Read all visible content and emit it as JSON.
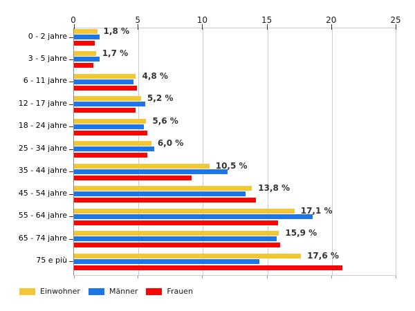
{
  "chart_data": {
    "type": "bar",
    "orientation": "horizontal",
    "title": "",
    "xlabel": "",
    "ylabel": "",
    "xlim": [
      0,
      25
    ],
    "x_ticks": [
      0,
      5,
      10,
      15,
      20,
      25
    ],
    "grid": "vertical",
    "legend_position": "bottom-left",
    "categories": [
      "0 - 2 jahre",
      "3 - 5 jahre",
      "6 - 11 jahre",
      "12 - 17 jahre",
      "18 - 24 jahre",
      "25 - 34 jahre",
      "35 - 44 jahre",
      "45 - 54 jahre",
      "55 - 64 jahre",
      "65 - 74 jahre",
      "75 e più"
    ],
    "series": [
      {
        "name": "Einwohner",
        "color": "#F1C733",
        "values": [
          1.8,
          1.7,
          4.8,
          5.2,
          5.6,
          6.0,
          10.5,
          13.8,
          17.1,
          15.9,
          17.6
        ]
      },
      {
        "name": "Männer",
        "color": "#1D76E8",
        "values": [
          2.0,
          2.0,
          4.6,
          5.5,
          5.4,
          6.2,
          11.9,
          13.3,
          18.5,
          15.7,
          14.4
        ]
      },
      {
        "name": "Frauen",
        "color": "#FB0404",
        "values": [
          1.6,
          1.5,
          4.9,
          4.8,
          5.7,
          5.7,
          9.1,
          14.1,
          15.8,
          16.0,
          20.8
        ]
      }
    ],
    "value_labels": [
      "1,8 %",
      "1,7 %",
      "4,8 %",
      "5,2 %",
      "5,6 %",
      "6,0 %",
      "10,5 %",
      "13,8 %",
      "17,1 %",
      "15,9 %",
      "17,6 %"
    ]
  },
  "legend": {
    "items": [
      {
        "label": "Einwohner",
        "color": "#F1C733"
      },
      {
        "label": "Männer",
        "color": "#1D76E8"
      },
      {
        "label": "Frauen",
        "color": "#FB0404"
      }
    ]
  },
  "colors": {
    "grid": "#CCCCCC",
    "axis_tick": "#333333",
    "value_label": "#333333",
    "background": "#FFFFFF"
  }
}
